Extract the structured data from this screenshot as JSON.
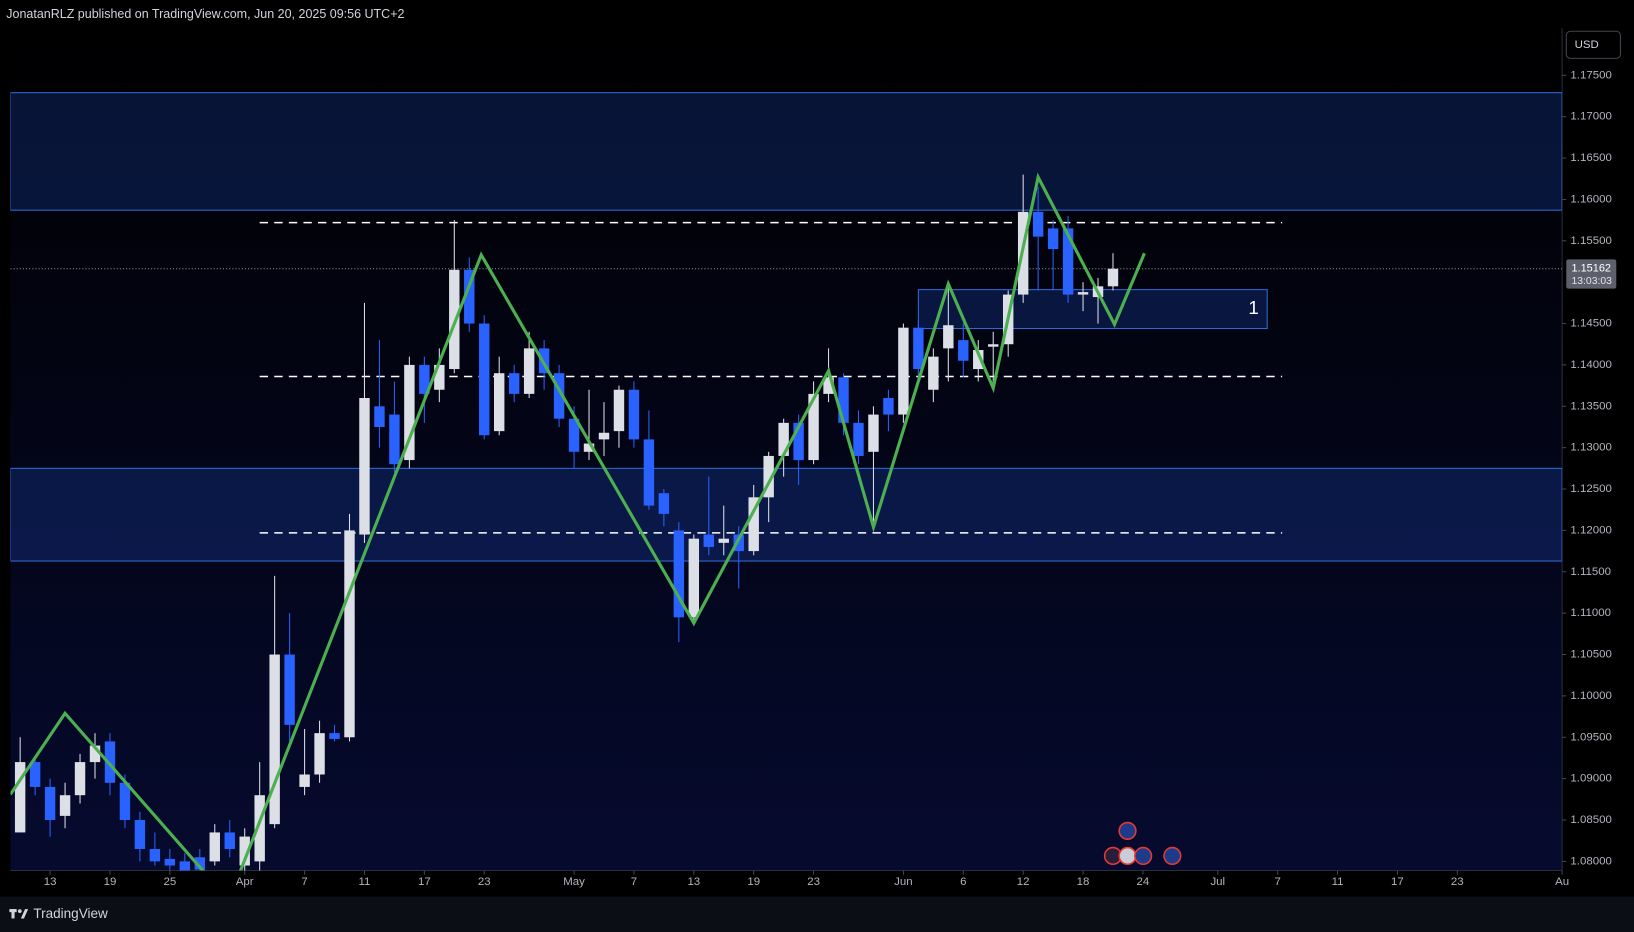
{
  "chart_data": {
    "type": "candlestick",
    "header": "JonatanRLZ published on TradingView.com, Jun 20, 2025 09:56 UTC+2",
    "brand": "TradingView",
    "currency": "USD",
    "countdown": "13:03:03",
    "up_color": "#dcdfe6",
    "down_color": "#2962ff",
    "xlim": [
      -0.65,
      103
    ],
    "ylim": [
      1.0789,
      1.1807
    ],
    "yticks": [
      {
        "value": 1.175,
        "label": "1.17500"
      },
      {
        "value": 1.17,
        "label": "1.17000"
      },
      {
        "value": 1.165,
        "label": "1.16500"
      },
      {
        "value": 1.16,
        "label": "1.16000"
      },
      {
        "value": 1.155,
        "label": "1.15500"
      },
      {
        "value": 1.145,
        "label": "1.14500"
      },
      {
        "value": 1.14,
        "label": "1.14000"
      },
      {
        "value": 1.135,
        "label": "1.13500"
      },
      {
        "value": 1.13,
        "label": "1.13000"
      },
      {
        "value": 1.125,
        "label": "1.12500"
      },
      {
        "value": 1.12,
        "label": "1.12000"
      },
      {
        "value": 1.115,
        "label": "1.11500"
      },
      {
        "value": 1.11,
        "label": "1.11000"
      },
      {
        "value": 1.105,
        "label": "1.10500"
      },
      {
        "value": 1.1,
        "label": "1.10000"
      },
      {
        "value": 1.095,
        "label": "1.09500"
      },
      {
        "value": 1.09,
        "label": "1.09000"
      },
      {
        "value": 1.085,
        "label": "1.08500"
      },
      {
        "value": 1.08,
        "label": "1.08000"
      }
    ],
    "xticks": [
      {
        "value": 2,
        "label": "13"
      },
      {
        "value": 6,
        "label": "19"
      },
      {
        "value": 10,
        "label": "25"
      },
      {
        "value": 15,
        "label": "Apr"
      },
      {
        "value": 19,
        "label": "7"
      },
      {
        "value": 23,
        "label": "11"
      },
      {
        "value": 27,
        "label": "17"
      },
      {
        "value": 31,
        "label": "23"
      },
      {
        "value": 37,
        "label": "May"
      },
      {
        "value": 41,
        "label": "7"
      },
      {
        "value": 45,
        "label": "13"
      },
      {
        "value": 49,
        "label": "19"
      },
      {
        "value": 53,
        "label": "23"
      },
      {
        "value": 59,
        "label": "Jun"
      },
      {
        "value": 63,
        "label": "6"
      },
      {
        "value": 67,
        "label": "12"
      },
      {
        "value": 71,
        "label": "18"
      },
      {
        "value": 75,
        "label": "24"
      },
      {
        "value": 80,
        "label": "Jul"
      },
      {
        "value": 84,
        "label": "7"
      },
      {
        "value": 88,
        "label": "11"
      },
      {
        "value": 92,
        "label": "17"
      },
      {
        "value": 96,
        "label": "23"
      },
      {
        "value": 103,
        "label": "Au"
      }
    ],
    "open": [
      1.0835,
      1.092,
      1.089,
      1.0855,
      1.088,
      1.092,
      1.0945,
      1.0895,
      1.085,
      1.0815,
      1.0803,
      1.08,
      1.0805,
      1.08,
      1.0835,
      1.0795,
      1.08,
      1.0845,
      1.105,
      1.089,
      1.0905,
      1.0955,
      1.095,
      1.1195,
      1.135,
      1.134,
      1.1285,
      1.14,
      1.137,
      1.1395,
      1.1515,
      1.145,
      1.132,
      1.139,
      1.1365,
      1.142,
      1.139,
      1.1335,
      1.1295,
      1.131,
      1.132,
      1.137,
      1.131,
      1.1245,
      1.12,
      1.1095,
      1.1195,
      1.1185,
      1.1195,
      1.1175,
      1.124,
      1.129,
      1.133,
      1.1285,
      1.1365,
      1.1385,
      1.133,
      1.1295,
      1.136,
      1.134,
      1.1445,
      1.137,
      1.142,
      1.143,
      1.1395,
      1.1422,
      1.1425,
      1.1485,
      1.1585,
      1.1565,
      1.1565,
      1.1485,
      1.1482,
      1.1495
    ],
    "high": [
      1.095,
      1.0925,
      1.09,
      1.0895,
      1.093,
      1.0955,
      1.0955,
      1.0905,
      1.086,
      1.0835,
      1.0815,
      1.081,
      1.0815,
      1.0845,
      1.085,
      1.084,
      1.092,
      1.1145,
      1.11,
      1.096,
      1.097,
      1.0965,
      1.122,
      1.1475,
      1.143,
      1.138,
      1.141,
      1.141,
      1.142,
      1.1575,
      1.153,
      1.146,
      1.141,
      1.14,
      1.144,
      1.143,
      1.14,
      1.135,
      1.137,
      1.1355,
      1.1375,
      1.138,
      1.1345,
      1.125,
      1.121,
      1.1195,
      1.1265,
      1.123,
      1.1205,
      1.1255,
      1.1295,
      1.1335,
      1.134,
      1.138,
      1.142,
      1.139,
      1.1345,
      1.135,
      1.137,
      1.145,
      1.1455,
      1.142,
      1.1495,
      1.145,
      1.143,
      1.144,
      1.149,
      1.163,
      1.1615,
      1.1575,
      1.158,
      1.15,
      1.1505,
      1.1535
    ],
    "low": [
      1.0835,
      1.088,
      1.083,
      1.084,
      1.087,
      1.09,
      1.088,
      1.084,
      1.08,
      1.0795,
      1.0785,
      1.0775,
      1.078,
      1.0795,
      1.0805,
      1.078,
      1.0785,
      1.084,
      1.0945,
      1.088,
      1.0895,
      1.0945,
      1.0945,
      1.1185,
      1.13,
      1.127,
      1.1275,
      1.133,
      1.1355,
      1.139,
      1.144,
      1.131,
      1.1315,
      1.1355,
      1.136,
      1.137,
      1.1325,
      1.1275,
      1.1285,
      1.129,
      1.13,
      1.13,
      1.1225,
      1.1205,
      1.1065,
      1.1085,
      1.117,
      1.117,
      1.113,
      1.117,
      1.121,
      1.1265,
      1.1255,
      1.128,
      1.1355,
      1.1315,
      1.128,
      1.121,
      1.132,
      1.133,
      1.1385,
      1.1355,
      1.138,
      1.1385,
      1.138,
      1.1375,
      1.141,
      1.1475,
      1.149,
      1.149,
      1.1475,
      1.1465,
      1.145,
      1.149
    ],
    "close": [
      1.092,
      1.089,
      1.085,
      1.088,
      1.092,
      1.094,
      1.0895,
      1.085,
      1.0815,
      1.08,
      1.0795,
      1.0785,
      1.079,
      1.0835,
      1.0815,
      1.083,
      1.088,
      1.105,
      1.0965,
      1.0905,
      1.0955,
      1.0948,
      1.12,
      1.136,
      1.1325,
      1.128,
      1.14,
      1.1365,
      1.14,
      1.1515,
      1.145,
      1.1315,
      1.139,
      1.1365,
      1.142,
      1.139,
      1.1335,
      1.1295,
      1.1305,
      1.1318,
      1.137,
      1.131,
      1.123,
      1.122,
      1.1095,
      1.119,
      1.118,
      1.119,
      1.1175,
      1.124,
      1.129,
      1.133,
      1.1285,
      1.1365,
      1.1385,
      1.133,
      1.129,
      1.134,
      1.134,
      1.1445,
      1.1395,
      1.141,
      1.1448,
      1.1405,
      1.1418,
      1.1425,
      1.1485,
      1.1585,
      1.1555,
      1.154,
      1.1485,
      1.1488,
      1.1495,
      1.15162
    ],
    "zones": [
      {
        "from": 1.1587,
        "to": 1.1729
      },
      {
        "from": 1.1163,
        "to": 1.1275
      }
    ],
    "box": {
      "x": [
        60,
        83.3
      ],
      "y": [
        1.1444,
        1.1491
      ],
      "label": "1"
    },
    "levels": [
      {
        "value": 1.1572,
        "x": [
          16,
          84.3
        ]
      },
      {
        "value": 1.1386,
        "x": [
          16,
          84.3
        ]
      },
      {
        "value": 1.1197,
        "x": [
          16,
          84.3
        ]
      }
    ],
    "zigzag": {
      "color": "#4caf50",
      "x": [
        -0.65,
        3,
        13.95,
        30.8,
        45,
        54,
        57,
        62,
        65,
        68,
        73.1,
        75.1
      ],
      "y": [
        1.0881,
        1.0979,
        1.0753,
        1.1533,
        1.1088,
        1.1393,
        1.1204,
        1.1498,
        1.1372,
        1.1627,
        1.1449,
        1.1535
      ]
    }
  }
}
